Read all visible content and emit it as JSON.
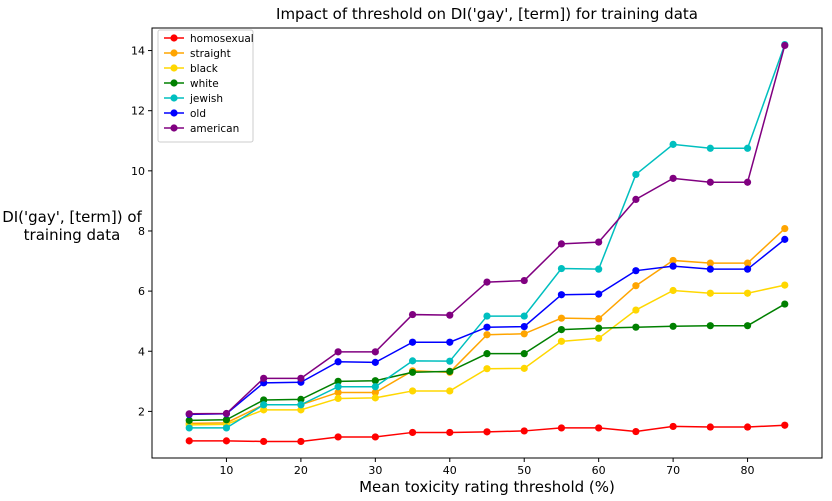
{
  "chart_data": {
    "type": "line",
    "title": "Impact of threshold on DI('gay', [term]) for training data",
    "xlabel": "Mean toxicity rating threshold (%)",
    "ylabel_lines": [
      "DI('gay', [term]) of",
      "training data"
    ],
    "xlim": [
      0,
      90
    ],
    "ylim": [
      0.45,
      14.75
    ],
    "xticks": [
      10,
      20,
      30,
      40,
      50,
      60,
      70,
      80
    ],
    "yticks": [
      2,
      4,
      6,
      8,
      10,
      12,
      14
    ],
    "grid": false,
    "legend_position": "upper-left",
    "x": [
      5,
      10,
      15,
      20,
      25,
      30,
      35,
      40,
      45,
      50,
      55,
      60,
      65,
      70,
      75,
      80,
      85
    ],
    "series": [
      {
        "name": "homosexual",
        "color": "#ff0000",
        "values": [
          1.02,
          1.02,
          1.0,
          1.0,
          1.15,
          1.15,
          1.3,
          1.3,
          1.32,
          1.35,
          1.45,
          1.45,
          1.33,
          1.5,
          1.48,
          1.48,
          1.54
        ]
      },
      {
        "name": "straight",
        "color": "#ffa500",
        "values": [
          1.6,
          1.62,
          2.22,
          2.22,
          2.63,
          2.63,
          3.35,
          3.3,
          4.55,
          4.58,
          5.1,
          5.08,
          6.18,
          7.02,
          6.93,
          6.93,
          8.08
        ]
      },
      {
        "name": "black",
        "color": "#ffd700",
        "values": [
          1.55,
          1.57,
          2.05,
          2.05,
          2.43,
          2.45,
          2.68,
          2.68,
          3.42,
          3.43,
          4.33,
          4.43,
          5.37,
          6.02,
          5.93,
          5.93,
          6.2
        ]
      },
      {
        "name": "white",
        "color": "#008000",
        "values": [
          1.7,
          1.72,
          2.38,
          2.4,
          3.0,
          3.02,
          3.3,
          3.33,
          3.92,
          3.92,
          4.72,
          4.77,
          4.8,
          4.83,
          4.85,
          4.85,
          5.57
        ]
      },
      {
        "name": "jewish",
        "color": "#00bfbf",
        "values": [
          1.45,
          1.45,
          2.22,
          2.22,
          2.82,
          2.82,
          3.68,
          3.67,
          5.17,
          5.17,
          6.75,
          6.73,
          9.88,
          10.88,
          10.75,
          10.75,
          14.2
        ]
      },
      {
        "name": "old",
        "color": "#0000ff",
        "values": [
          1.9,
          1.92,
          2.95,
          2.97,
          3.65,
          3.63,
          4.3,
          4.3,
          4.8,
          4.82,
          5.88,
          5.9,
          6.68,
          6.83,
          6.73,
          6.73,
          7.72
        ]
      },
      {
        "name": "american",
        "color": "#800080",
        "values": [
          1.92,
          1.93,
          3.1,
          3.1,
          3.98,
          3.98,
          5.22,
          5.2,
          6.3,
          6.35,
          7.57,
          7.63,
          9.05,
          9.75,
          9.62,
          9.62,
          14.17
        ]
      }
    ]
  }
}
